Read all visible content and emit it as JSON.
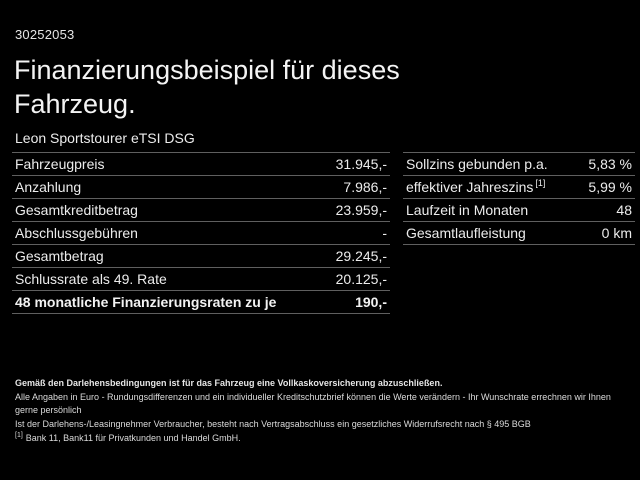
{
  "page": {
    "background": "#000000",
    "text_color": "#ededed",
    "divider_color": "#5f5f5f"
  },
  "header": {
    "offer_id": "30252053",
    "title_line1": "Finanzierungsbeispiel für dieses",
    "title_line2": "Fahrzeug.",
    "vehicle_name": "Leon Sportstourer eTSI DSG"
  },
  "finance_table": {
    "rows": [
      {
        "label": "Fahrzeugpreis",
        "value": "31.945,-",
        "bold": false
      },
      {
        "label": "Anzahlung",
        "value": "7.986,-",
        "bold": false
      },
      {
        "label": "Gesamtkreditbetrag",
        "value": "23.959,-",
        "bold": false
      },
      {
        "label": "Abschlussgebühren",
        "value": "-",
        "bold": false
      },
      {
        "label": "Gesamtbetrag",
        "value": "29.245,-",
        "bold": false
      },
      {
        "label": "Schlussrate als 49. Rate",
        "value": "20.125,-",
        "bold": false
      },
      {
        "label": "48 monatliche Finanzierungsraten zu je",
        "value": "190,-",
        "bold": true
      }
    ]
  },
  "conditions_table": {
    "rows": [
      {
        "label": "Sollzins gebunden p.a.",
        "sup": "",
        "value": "5,83 %",
        "bold": false
      },
      {
        "label": "effektiver Jahreszins",
        "sup": "[1]",
        "value": "5,99 %",
        "bold": false
      },
      {
        "label": "Laufzeit in Monaten",
        "sup": "",
        "value": "48",
        "bold": false
      },
      {
        "label": "Gesamtlaufleistung",
        "sup": "",
        "value": "0 km",
        "bold": false
      }
    ]
  },
  "footer": {
    "insurance_note": "Gemäß den Darlehensbedingungen ist für das Fahrzeug eine Vollkaskoversicherung abzuschließen.",
    "note_line2": "Alle Angaben in Euro - Rundungsdifferenzen und ein individueller Kreditschutzbrief können die Werte verändern - Ihr Wunschrate errechnen wir Ihnen gerne persönlich",
    "note_line3": "Ist der Darlehens-/Leasingnehmer Verbraucher, besteht nach Vertragsabschluss ein gesetzliches Widerrufsrecht nach § 495 BGB",
    "footnote_marker": "[1]",
    "footnote_text": "Bank 11, Bank11 für Privatkunden und Handel GmbH."
  }
}
